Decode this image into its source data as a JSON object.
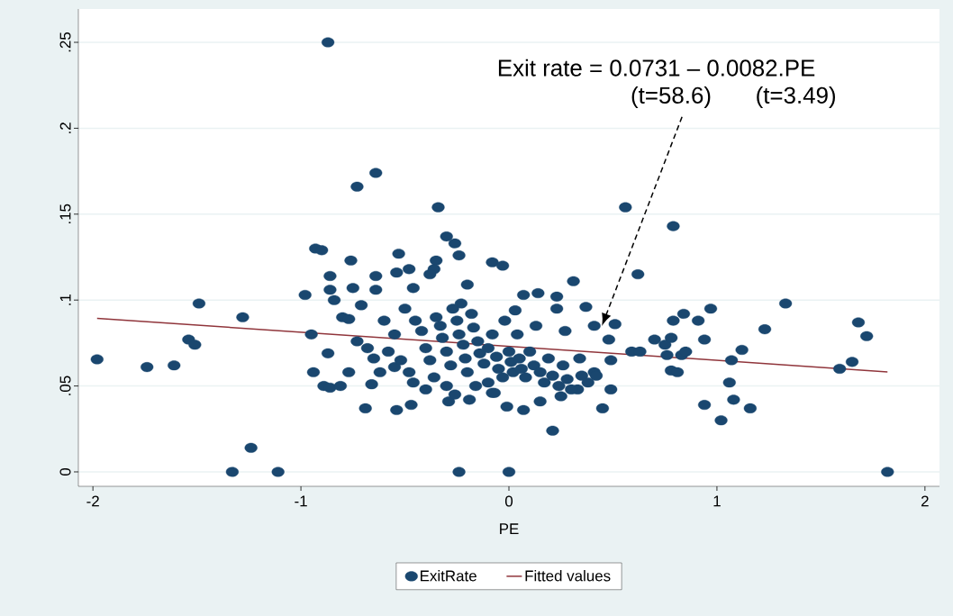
{
  "chart_data": {
    "type": "scatter",
    "xlabel": "PE",
    "annotations": [
      "Exit rate = 0.0731 – 0.0082.PE",
      "(t=58.6)",
      "(t=3.49)"
    ],
    "xlim": [
      -2.07,
      2.07
    ],
    "ylim": [
      -0.0084,
      0.2694
    ],
    "xticks": [
      -2,
      -1,
      0,
      1,
      2
    ],
    "yticks": [
      {
        "value": 0,
        "label": "0"
      },
      {
        "value": 0.05,
        "label": ".05"
      },
      {
        "value": 0.1,
        "label": ".1"
      },
      {
        "value": 0.15,
        "label": ".15"
      },
      {
        "value": 0.2,
        "label": ".2"
      },
      {
        "value": 0.25,
        "label": ".25"
      }
    ],
    "grid": "y",
    "legend": "bottom",
    "series": [
      {
        "name": "ExitRate",
        "marker": "circle",
        "color": "#1a476f",
        "x": [
          -1.98,
          -1.74,
          -1.61,
          -1.54,
          -1.51,
          -1.49,
          -1.28,
          -1.33,
          -1.24,
          -1.11,
          -0.87,
          -0.73,
          -0.64,
          -0.34,
          -0.98,
          -0.95,
          -0.94,
          -0.93,
          -0.9,
          -0.86,
          -0.86,
          -0.84,
          -0.87,
          -0.89,
          -0.86,
          -0.81,
          -0.76,
          -0.75,
          -0.8,
          -0.77,
          -0.73,
          -0.77,
          -0.71,
          -0.69,
          -0.64,
          -0.64,
          -0.66,
          -0.55,
          -0.54,
          -0.53,
          -0.54,
          -0.48,
          -0.47,
          -0.35,
          -0.3,
          -0.26,
          -0.24,
          -0.2,
          -0.08,
          -0.03,
          -0.36,
          -0.46,
          -0.38,
          -0.23,
          -0.24,
          0.0,
          -0.29,
          -0.19,
          -0.08,
          -0.01,
          0.07,
          0.21,
          0.15,
          0.25,
          0.33,
          0.45,
          0.49,
          0.41,
          0.34,
          0.27,
          0.31,
          0.07,
          0.14,
          0.23,
          0.23,
          0.37,
          0.41,
          0.51,
          0.48,
          0.49,
          0.56,
          0.62,
          0.59,
          0.63,
          0.7,
          0.75,
          0.78,
          0.79,
          0.84,
          0.79,
          0.78,
          0.81,
          0.76,
          0.83,
          0.85,
          0.91,
          0.97,
          0.94,
          0.94,
          1.02,
          1.06,
          1.08,
          1.07,
          1.12,
          1.16,
          1.23,
          1.33,
          1.59,
          1.65,
          1.68,
          1.72,
          1.82,
          -0.5,
          -0.45,
          -0.42,
          -0.4,
          -0.38,
          -0.35,
          -0.33,
          -0.32,
          -0.3,
          -0.28,
          -0.27,
          -0.25,
          -0.24,
          -0.22,
          -0.21,
          -0.2,
          -0.18,
          -0.17,
          -0.15,
          -0.14,
          -0.12,
          -0.1,
          -0.08,
          -0.06,
          -0.05,
          -0.03,
          -0.02,
          0.0,
          0.01,
          0.02,
          0.03,
          0.04,
          0.05,
          0.06,
          0.08,
          0.1,
          0.12,
          0.13,
          0.15,
          0.17,
          0.19,
          0.21,
          0.24,
          0.26,
          0.28,
          0.3,
          0.35,
          0.38,
          0.42,
          -0.55,
          -0.58,
          -0.6,
          -0.62,
          -0.65,
          -0.68,
          -0.52,
          -0.48,
          -0.46,
          -0.4,
          -0.36,
          -0.3,
          -0.26,
          -0.16,
          -0.1,
          -0.07
        ],
        "values": [
          0.0655,
          0.061,
          0.062,
          0.077,
          0.074,
          0.098,
          0.09,
          0,
          0.014,
          0,
          0.25,
          0.166,
          0.174,
          0.154,
          0.103,
          0.08,
          0.058,
          0.13,
          0.129,
          0.114,
          0.106,
          0.1,
          0.069,
          0.05,
          0.049,
          0.05,
          0.123,
          0.107,
          0.09,
          0.089,
          0.076,
          0.058,
          0.097,
          0.037,
          0.114,
          0.106,
          0.051,
          0.061,
          0.116,
          0.127,
          0.036,
          0.118,
          0.039,
          0.123,
          0.137,
          0.133,
          0.126,
          0.109,
          0.122,
          0.12,
          0.118,
          0.107,
          0.115,
          0.098,
          0,
          0,
          0.041,
          0.042,
          0.046,
          0.038,
          0.036,
          0.024,
          0.041,
          0.044,
          0.048,
          0.037,
          0.048,
          0.058,
          0.066,
          0.082,
          0.111,
          0.103,
          0.104,
          0.102,
          0.095,
          0.096,
          0.085,
          0.086,
          0.077,
          0.065,
          0.154,
          0.115,
          0.07,
          0.07,
          0.077,
          0.074,
          0.078,
          0.088,
          0.092,
          0.143,
          0.059,
          0.058,
          0.068,
          0.068,
          0.07,
          0.088,
          0.095,
          0.077,
          0.039,
          0.03,
          0.052,
          0.042,
          0.065,
          0.071,
          0.037,
          0.083,
          0.098,
          0.06,
          0.064,
          0.087,
          0.079,
          0,
          0.095,
          0.088,
          0.082,
          0.072,
          0.065,
          0.09,
          0.085,
          0.078,
          0.07,
          0.062,
          0.095,
          0.088,
          0.08,
          0.074,
          0.066,
          0.058,
          0.092,
          0.084,
          0.076,
          0.069,
          0.063,
          0.072,
          0.08,
          0.067,
          0.06,
          0.055,
          0.088,
          0.07,
          0.064,
          0.058,
          0.094,
          0.08,
          0.066,
          0.06,
          0.055,
          0.07,
          0.062,
          0.085,
          0.058,
          0.052,
          0.066,
          0.056,
          0.05,
          0.062,
          0.054,
          0.048,
          0.056,
          0.052,
          0.056,
          0.08,
          0.07,
          0.088,
          0.058,
          0.066,
          0.072,
          0.065,
          0.058,
          0.052,
          0.048,
          0.055,
          0.05,
          0.045,
          0.05,
          0.052,
          0.046
        ]
      },
      {
        "name": "Fitted values",
        "type": "line",
        "color": "#90353b",
        "x": [
          -1.98,
          1.82
        ],
        "values": [
          0.0893,
          0.0582
        ]
      }
    ]
  }
}
